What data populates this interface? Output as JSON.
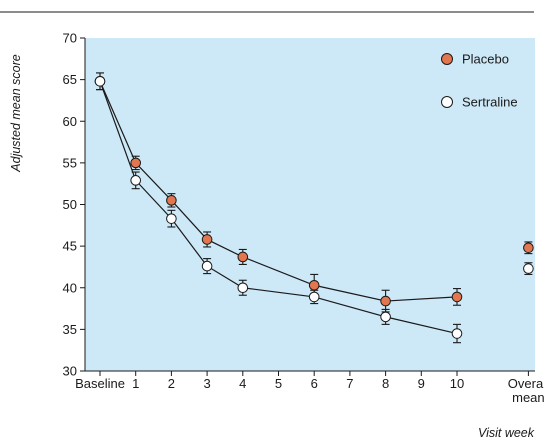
{
  "chart_data": {
    "type": "line",
    "xlabel": "Visit week",
    "ylabel": "Adjusted mean score",
    "ylim": [
      30,
      70
    ],
    "y_ticks": [
      30,
      35,
      40,
      45,
      50,
      55,
      60,
      65,
      70
    ],
    "x_ticks": [
      {
        "pos": 0,
        "label": "Baseline"
      },
      {
        "pos": 1,
        "label": "1"
      },
      {
        "pos": 2,
        "label": "2"
      },
      {
        "pos": 3,
        "label": "3"
      },
      {
        "pos": 4,
        "label": "4"
      },
      {
        "pos": 5,
        "label": "5"
      },
      {
        "pos": 6,
        "label": "6"
      },
      {
        "pos": 7,
        "label": "7"
      },
      {
        "pos": 8,
        "label": "8"
      },
      {
        "pos": 9,
        "label": "9"
      },
      {
        "pos": 10,
        "label": "10"
      },
      {
        "pos": 12,
        "label": "Overall",
        "label2": "mean"
      }
    ],
    "grid": false,
    "legend_position": "top-right",
    "colors": {
      "plot_background": "#cde8f6",
      "placebo_fill": "#e2764f",
      "sertraline_fill": "#ffffff",
      "line": "#1a1a1a"
    },
    "series": [
      {
        "name": "Placebo",
        "marker": "filled-circle",
        "points": [
          {
            "x": 0,
            "y": 64.8,
            "err": 1.0
          },
          {
            "x": 1,
            "y": 55.0,
            "err": 0.8
          },
          {
            "x": 2,
            "y": 50.5,
            "err": 0.8
          },
          {
            "x": 3,
            "y": 45.8,
            "err": 0.9
          },
          {
            "x": 4,
            "y": 43.7,
            "err": 0.9
          },
          {
            "x": 6,
            "y": 40.3,
            "err": 1.3
          },
          {
            "x": 8,
            "y": 38.4,
            "err": 1.3
          },
          {
            "x": 10,
            "y": 38.9,
            "err": 1.0
          }
        ],
        "summary": {
          "x": 12,
          "y": 44.8,
          "err": 0.7
        }
      },
      {
        "name": "Sertraline",
        "marker": "open-circle",
        "points": [
          {
            "x": 0,
            "y": 64.8,
            "err": 1.0
          },
          {
            "x": 1,
            "y": 52.9,
            "err": 1.0
          },
          {
            "x": 2,
            "y": 48.3,
            "err": 1.0
          },
          {
            "x": 3,
            "y": 42.6,
            "err": 0.9
          },
          {
            "x": 4,
            "y": 40.0,
            "err": 0.9
          },
          {
            "x": 6,
            "y": 38.9,
            "err": 0.8
          },
          {
            "x": 8,
            "y": 36.5,
            "err": 0.9
          },
          {
            "x": 10,
            "y": 34.5,
            "err": 1.1
          }
        ],
        "summary": {
          "x": 12,
          "y": 42.3,
          "err": 0.7
        }
      }
    ]
  }
}
